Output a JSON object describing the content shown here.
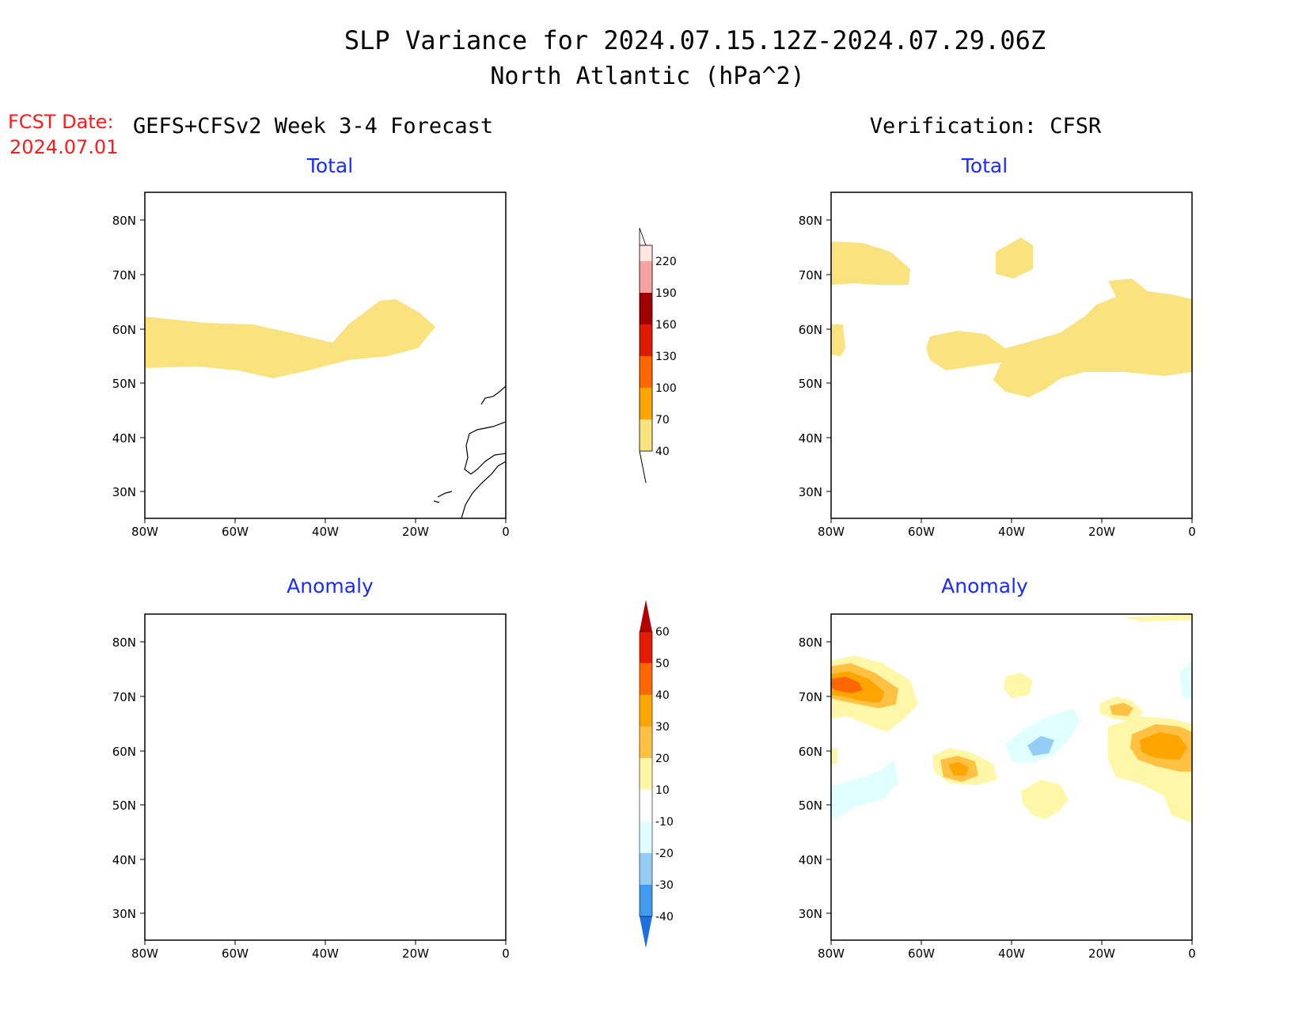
{
  "title": {
    "line1": "SLP Variance for 2024.07.15.12Z-2024.07.29.06Z",
    "line2": "North Atlantic (hPa^2)"
  },
  "fcst": {
    "label": "FCST Date:",
    "date": "2024.07.01"
  },
  "forecast_header": "GEFS+CFSv2 Week 3-4 Forecast",
  "verification_header": "Verification: CFSR",
  "panels": {
    "total_label": "Total",
    "anomaly_label": "Anomaly"
  },
  "map_axes": {
    "lat_ticks": [
      "80N",
      "70N",
      "60N",
      "50N",
      "40N",
      "30N"
    ],
    "lon_ticks": [
      "80W",
      "60W",
      "40W",
      "20W",
      "0"
    ],
    "lat_range": [
      25,
      85
    ],
    "lon_range": [
      -80,
      0
    ]
  },
  "colorbar_total": {
    "ticks": [
      "220",
      "190",
      "160",
      "130",
      "100",
      "70",
      "40"
    ],
    "colors": [
      "#fde5e0",
      "#f4a3a3",
      "#a00000",
      "#e01a00",
      "#ff6600",
      "#ffa500",
      "#fae27f"
    ]
  },
  "colorbar_anomaly": {
    "ticks": [
      "60",
      "50",
      "40",
      "30",
      "20",
      "10",
      "-10",
      "-20",
      "-30",
      "-40"
    ],
    "colors": [
      "#b30000",
      "#e61a00",
      "#ff6600",
      "#ffa500",
      "#ffc144",
      "#fff7a8",
      "#ffffff",
      "#e0ffff",
      "#94cdf5",
      "#3f9cf0",
      "#1e6fe0"
    ]
  },
  "chart_data": [
    {
      "type": "heatmap",
      "name_hidden": "forecast-total",
      "fields": "shaded SLP variance, 40-70 hPa^2 band along ~55-62N from 80W to 20W"
    },
    {
      "type": "heatmap",
      "name_hidden": "verification-total",
      "fields": "40-70 hPa^2 shading near 70N 80W-65W, 72N 40W, and 50-62N 60W-0"
    },
    {
      "type": "heatmap",
      "name_hidden": "forecast-anomaly",
      "fields": "no shading (all between -10 and 10)"
    },
    {
      "type": "heatmap",
      "name_hidden": "verification-anomaly",
      "fields": "positive up to 40-50 near 72N 75W, 20-30 near 57N 53W and 60N 5W, negative -10 to -20 near 58N 33W"
    }
  ]
}
